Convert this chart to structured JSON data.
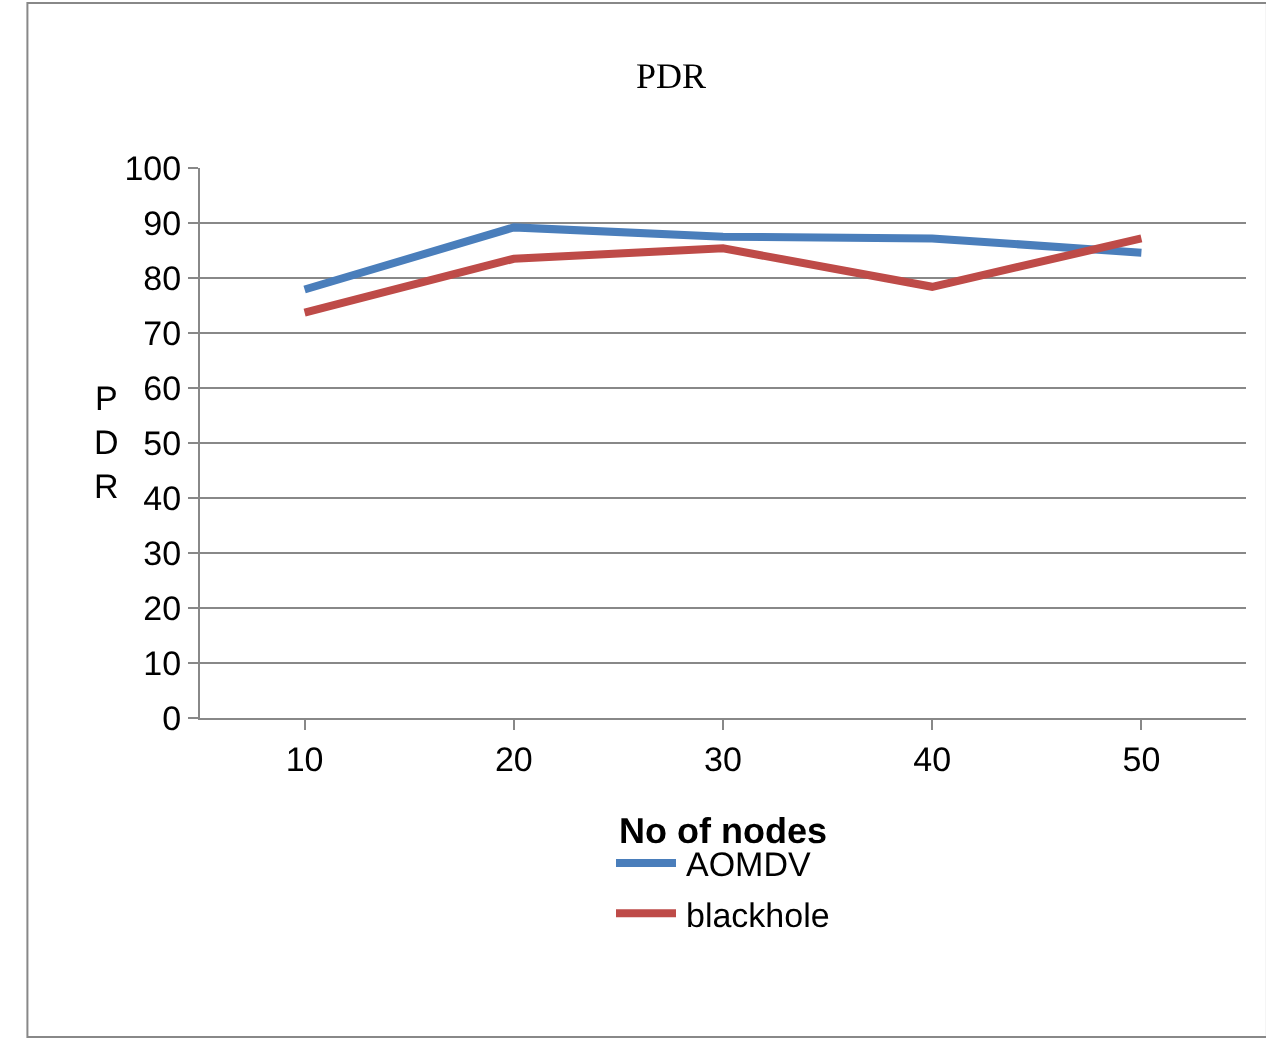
{
  "chart_data": {
    "type": "line",
    "title": "PDR",
    "xlabel": "No of nodes",
    "ylabel": "PDR",
    "categories": [
      "10",
      "20",
      "30",
      "40",
      "50"
    ],
    "series": [
      {
        "name": "AOMDV",
        "color": "#4a7ebb",
        "values": [
          77.9,
          89.2,
          87.5,
          87.2,
          84.6
        ]
      },
      {
        "name": "blackhole",
        "color": "#be4b48",
        "values": [
          73.7,
          83.5,
          85.4,
          78.4,
          87.2
        ]
      }
    ],
    "ylim": [
      0,
      100
    ],
    "yticks": [
      0,
      10,
      20,
      30,
      40,
      50,
      60,
      70,
      80,
      90,
      100
    ],
    "grid": "y",
    "legend": "bottom",
    "marker": "none",
    "line_style": "solid"
  }
}
